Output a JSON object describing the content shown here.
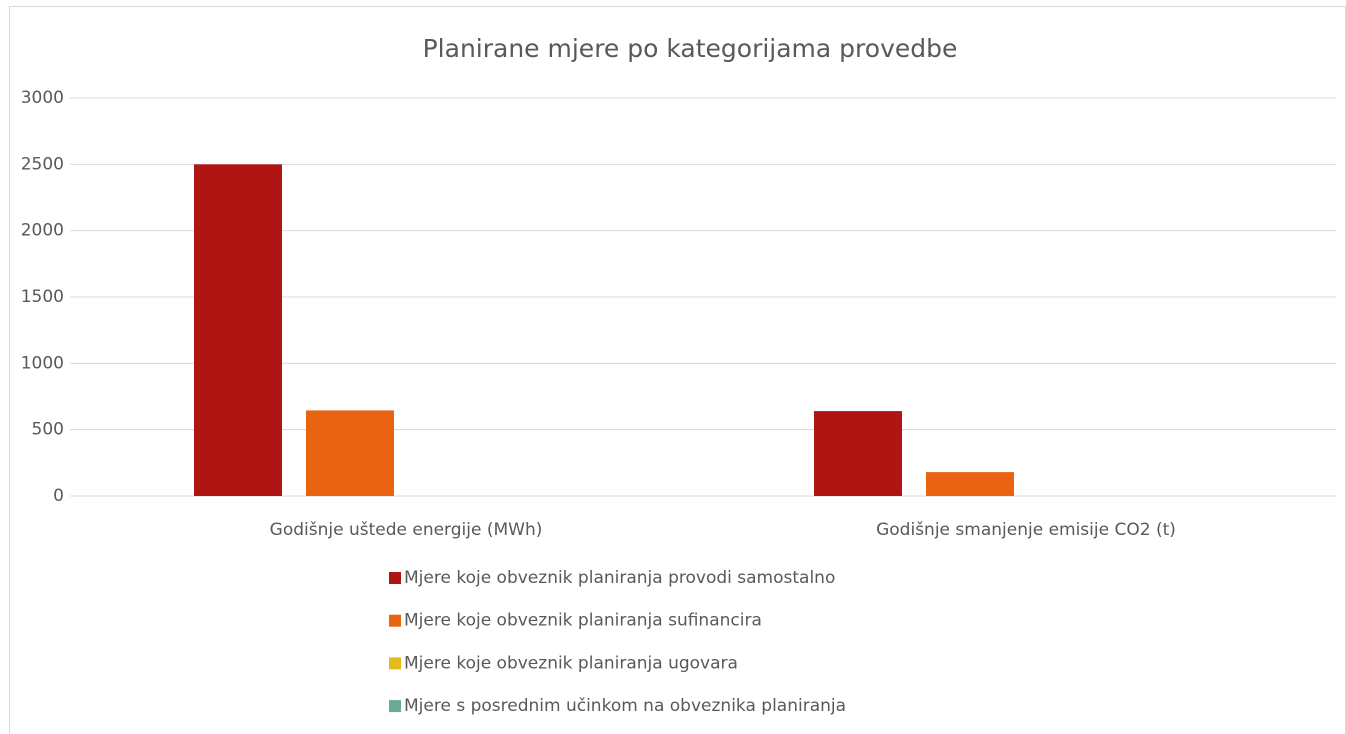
{
  "chart_data": {
    "type": "bar",
    "title": "Planirane mjere po kategorijama provedbe",
    "categories": [
      "Godišnje uštede energije (MWh)",
      "Godišnje smanjenje emisije CO2 (t)"
    ],
    "series": [
      {
        "name": "Mjere koje obveznik planiranja provodi samostalno",
        "color": "#b01513",
        "values": [
          2500,
          640
        ]
      },
      {
        "name": "Mjere koje obveznik planiranja sufinancira",
        "color": "#ea6312",
        "values": [
          645,
          180
        ]
      },
      {
        "name": "Mjere koje obveznik planiranja ugovara",
        "color": "#e6b91e",
        "values": [
          0,
          0
        ]
      },
      {
        "name": "Mjere s posrednim učinkom na obveznika planiranja",
        "color": "#6aac90",
        "values": [
          0,
          0
        ]
      }
    ],
    "ylim": [
      0,
      3000
    ],
    "yticks": [
      0,
      500,
      1000,
      1500,
      2000,
      2500,
      3000
    ],
    "grid": true,
    "legend": "bottom"
  }
}
